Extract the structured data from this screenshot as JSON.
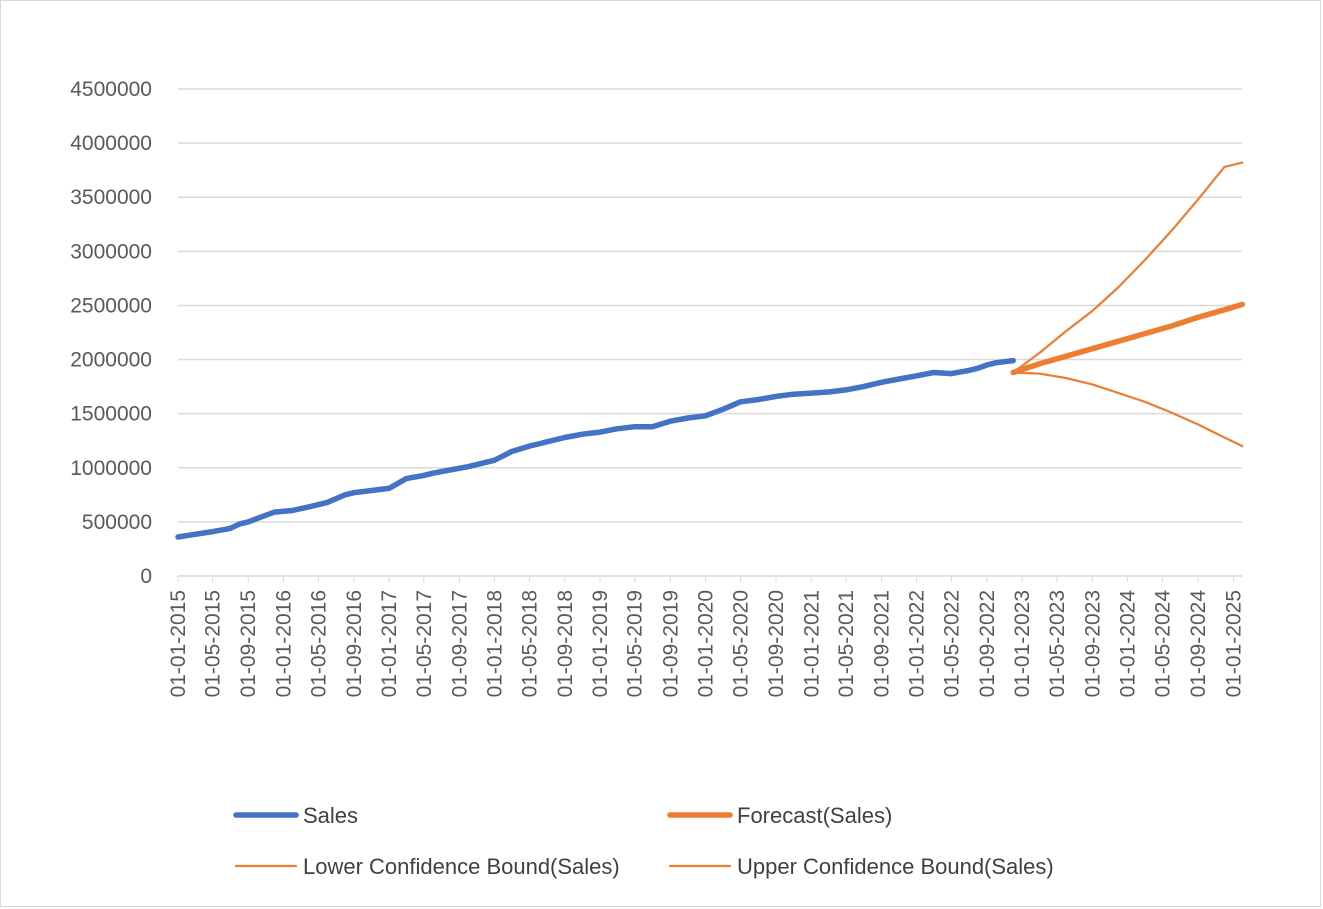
{
  "chart_data": {
    "type": "line",
    "title": "",
    "xlabel": "",
    "ylabel": "",
    "ylim": [
      0,
      4500000
    ],
    "y_ticks": [
      0,
      500000,
      1000000,
      1500000,
      2000000,
      2500000,
      3000000,
      3500000,
      4000000,
      4500000
    ],
    "y_tick_labels": [
      "0",
      "500000",
      "1000000",
      "1500000",
      "2000000",
      "2500000",
      "3000000",
      "3500000",
      "4000000",
      "4500000"
    ],
    "x_tick_labels": [
      "01-01-2015",
      "01-05-2015",
      "01-09-2015",
      "01-01-2016",
      "01-05-2016",
      "01-09-2016",
      "01-01-2017",
      "01-05-2017",
      "01-09-2017",
      "01-01-2018",
      "01-05-2018",
      "01-09-2018",
      "01-01-2019",
      "01-05-2019",
      "01-09-2019",
      "01-01-2020",
      "01-05-2020",
      "01-09-2020",
      "01-01-2021",
      "01-05-2021",
      "01-09-2021",
      "01-01-2022",
      "01-05-2022",
      "01-09-2022",
      "01-01-2023",
      "01-05-2023",
      "01-09-2023",
      "01-01-2024",
      "01-05-2024",
      "01-09-2024",
      "01-01-2025"
    ],
    "grid": true,
    "legend_position": "bottom",
    "colors": {
      "actual": "#4472C4",
      "forecast": "#ED7D31",
      "grid": "#d9d9d9",
      "axis": "#d9d9d9"
    },
    "series": [
      {
        "name": "Sales",
        "color": "#4472C4",
        "style": "thick",
        "x": [
          "01-01-2015",
          "01-03-2015",
          "01-05-2015",
          "01-07-2015",
          "01-08-2015",
          "01-09-2015",
          "01-10-2015",
          "01-12-2015",
          "01-02-2016",
          "01-04-2016",
          "01-06-2016",
          "01-08-2016",
          "01-09-2016",
          "01-11-2016",
          "01-01-2017",
          "01-03-2017",
          "01-05-2017",
          "01-06-2017",
          "01-08-2017",
          "01-10-2017",
          "01-01-2018",
          "01-03-2018",
          "01-05-2018",
          "01-06-2018",
          "01-07-2018",
          "01-09-2018",
          "01-11-2018",
          "01-01-2019",
          "01-03-2019",
          "01-05-2019",
          "01-07-2019",
          "01-09-2019",
          "01-11-2019",
          "01-01-2020",
          "01-03-2020",
          "01-05-2020",
          "01-07-2020",
          "01-09-2020",
          "01-11-2020",
          "01-01-2021",
          "01-03-2021",
          "01-05-2021",
          "01-07-2021",
          "01-09-2021",
          "01-11-2021",
          "01-01-2022",
          "01-03-2022",
          "01-05-2022",
          "01-07-2022",
          "01-08-2022",
          "01-09-2022",
          "01-10-2022",
          "01-11-2022",
          "01-12-2022"
        ],
        "values": [
          360000,
          385000,
          410000,
          440000,
          480000,
          500000,
          530000,
          590000,
          605000,
          640000,
          680000,
          750000,
          770000,
          790000,
          810000,
          900000,
          930000,
          950000,
          980000,
          1010000,
          1070000,
          1150000,
          1200000,
          1220000,
          1240000,
          1280000,
          1310000,
          1330000,
          1360000,
          1380000,
          1380000,
          1430000,
          1460000,
          1480000,
          1540000,
          1610000,
          1630000,
          1660000,
          1680000,
          1690000,
          1700000,
          1720000,
          1750000,
          1790000,
          1820000,
          1850000,
          1880000,
          1870000,
          1900000,
          1920000,
          1950000,
          1970000,
          1980000,
          1990000
        ]
      },
      {
        "name": "Forecast(Sales)",
        "color": "#ED7D31",
        "style": "thick",
        "x": [
          "01-12-2022",
          "01-03-2023",
          "01-06-2023",
          "01-09-2023",
          "01-12-2023",
          "01-03-2024",
          "01-06-2024",
          "01-09-2024",
          "01-12-2024",
          "01-02-2025"
        ],
        "values": [
          1880000,
          1960000,
          2030000,
          2100000,
          2170000,
          2240000,
          2310000,
          2390000,
          2460000,
          2510000
        ]
      },
      {
        "name": "Lower Confidence Bound(Sales)",
        "color": "#ED7D31",
        "style": "thin",
        "x": [
          "01-12-2022",
          "01-03-2023",
          "01-06-2023",
          "01-09-2023",
          "01-12-2023",
          "01-03-2024",
          "01-06-2024",
          "01-09-2024",
          "01-12-2024",
          "01-02-2025"
        ],
        "values": [
          1880000,
          1870000,
          1830000,
          1770000,
          1690000,
          1610000,
          1510000,
          1400000,
          1280000,
          1200000
        ]
      },
      {
        "name": "Upper Confidence Bound(Sales)",
        "color": "#ED7D31",
        "style": "thin",
        "x": [
          "01-12-2022",
          "01-03-2023",
          "01-06-2023",
          "01-09-2023",
          "01-12-2023",
          "01-03-2024",
          "01-06-2024",
          "01-09-2024",
          "01-12-2024",
          "01-02-2025"
        ],
        "values": [
          1880000,
          2060000,
          2260000,
          2450000,
          2670000,
          2920000,
          3190000,
          3480000,
          3780000,
          3820000
        ]
      }
    ]
  }
}
